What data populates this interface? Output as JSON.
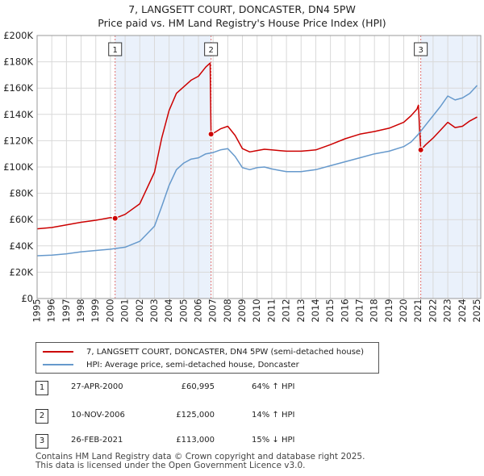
{
  "header": {
    "title": "7, LANGSETT COURT, DONCASTER, DN4 5PW",
    "subtitle": "Price paid vs. HM Land Registry's House Price Index (HPI)"
  },
  "chart_data": {
    "type": "line",
    "title": "7, LANGSETT COURT, DONCASTER, DN4 5PW",
    "subtitle": "Price paid vs. HM Land Registry's House Price Index (HPI)",
    "xlabel": "",
    "ylabel": "",
    "xlim": [
      1995,
      2025.25
    ],
    "ylim": [
      0,
      200000
    ],
    "grid": true,
    "y_ticks": [
      0,
      20000,
      40000,
      60000,
      80000,
      100000,
      120000,
      140000,
      160000,
      180000,
      200000
    ],
    "y_tick_labels": [
      "£0",
      "£20K",
      "£40K",
      "£60K",
      "£80K",
      "£100K",
      "£120K",
      "£140K",
      "£160K",
      "£180K",
      "£200K"
    ],
    "x_ticks": [
      1995,
      1996,
      1997,
      1998,
      1999,
      2000,
      2001,
      2002,
      2003,
      2004,
      2005,
      2006,
      2007,
      2008,
      2009,
      2010,
      2011,
      2012,
      2013,
      2014,
      2015,
      2016,
      2017,
      2018,
      2019,
      2020,
      2021,
      2022,
      2023,
      2024,
      2025
    ],
    "x_tick_labels": [
      "1995",
      "1996",
      "1997",
      "1998",
      "1999",
      "2000",
      "2001",
      "2002",
      "2003",
      "2004",
      "2005",
      "2006",
      "2007",
      "2008",
      "2009",
      "2010",
      "2011",
      "2012",
      "2013",
      "2014",
      "2015",
      "2016",
      "2017",
      "2018",
      "2019",
      "2020",
      "2021",
      "2022",
      "2023",
      "2024",
      "2025"
    ],
    "shaded_ranges": [
      [
        2000.32,
        2006.86
      ],
      [
        2021.16,
        2025.25
      ]
    ],
    "series": [
      {
        "name": "7, LANGSETT COURT, DONCASTER, DN4 5PW (semi-detached house)",
        "color": "#cc0000",
        "x": [
          1995.0,
          1996.0,
          1997.0,
          1998.0,
          1999.0,
          2000.0,
          2000.32,
          2001.0,
          2002.0,
          2003.0,
          2003.5,
          2004.0,
          2004.5,
          2005.0,
          2005.5,
          2006.0,
          2006.5,
          2006.8,
          2006.86,
          2007.0,
          2007.5,
          2008.0,
          2008.5,
          2009.0,
          2009.5,
          2010.0,
          2010.5,
          2011.0,
          2011.5,
          2012.0,
          2013.0,
          2014.0,
          2015.0,
          2016.0,
          2017.0,
          2018.0,
          2019.0,
          2020.0,
          2020.5,
          2020.9,
          2021.0,
          2021.16,
          2021.5,
          2022.0,
          2022.5,
          2023.0,
          2023.5,
          2024.0,
          2024.5,
          2025.0
        ],
        "values": [
          53000,
          54000,
          56000,
          58000,
          59500,
          61500,
          60995,
          64000,
          72000,
          96000,
          122000,
          143000,
          156000,
          161000,
          166000,
          169000,
          176000,
          179000,
          125000,
          125500,
          129000,
          131000,
          124000,
          114000,
          111500,
          112500,
          113500,
          113000,
          112500,
          112000,
          112000,
          113000,
          117000,
          121500,
          125000,
          127000,
          129500,
          134000,
          139000,
          144000,
          147000,
          113000,
          117000,
          122000,
          128000,
          134000,
          130000,
          131000,
          135000,
          138000
        ]
      },
      {
        "name": "HPI: Average price, semi-detached house, Doncaster",
        "color": "#6699cc",
        "x": [
          1995.0,
          1996.0,
          1997.0,
          1998.0,
          1999.0,
          2000.0,
          2001.0,
          2002.0,
          2003.0,
          2003.5,
          2004.0,
          2004.5,
          2005.0,
          2005.5,
          2006.0,
          2006.5,
          2007.0,
          2007.5,
          2008.0,
          2008.5,
          2009.0,
          2009.5,
          2010.0,
          2010.5,
          2011.0,
          2011.5,
          2012.0,
          2013.0,
          2014.0,
          2015.0,
          2016.0,
          2017.0,
          2018.0,
          2019.0,
          2020.0,
          2020.5,
          2021.0,
          2021.5,
          2022.0,
          2022.5,
          2023.0,
          2023.5,
          2024.0,
          2024.5,
          2025.0
        ],
        "values": [
          32500,
          33000,
          34000,
          35500,
          36500,
          37500,
          39000,
          43500,
          55000,
          70000,
          86000,
          98000,
          103000,
          106000,
          107000,
          110000,
          111000,
          113000,
          114000,
          108000,
          99500,
          98000,
          99500,
          100000,
          98500,
          97500,
          96500,
          96500,
          98000,
          101000,
          104000,
          107000,
          110000,
          112000,
          115500,
          119000,
          125000,
          132000,
          139000,
          146000,
          154000,
          151000,
          152500,
          156000,
          162000
        ]
      }
    ],
    "sales": [
      {
        "label": "1",
        "x": 2000.32,
        "value": 60995
      },
      {
        "label": "2",
        "x": 2006.86,
        "value": 125000
      },
      {
        "label": "3",
        "x": 2021.16,
        "value": 113000
      }
    ]
  },
  "legend": {
    "items": [
      {
        "label": "7, LANGSETT COURT, DONCASTER, DN4 5PW (semi-detached house)",
        "color": "#cc0000"
      },
      {
        "label": "HPI: Average price, semi-detached house, Doncaster",
        "color": "#6699cc"
      }
    ]
  },
  "transactions": [
    {
      "num": "1",
      "date": "27-APR-2000",
      "price": "£60,995",
      "hpi": "64% ↑ HPI"
    },
    {
      "num": "2",
      "date": "10-NOV-2006",
      "price": "£125,000",
      "hpi": "14% ↑ HPI"
    },
    {
      "num": "3",
      "date": "26-FEB-2021",
      "price": "£113,000",
      "hpi": "15% ↓ HPI"
    }
  ],
  "footer": {
    "line1": "Contains HM Land Registry data © Crown copyright and database right 2025.",
    "line2": "This data is licensed under the Open Government Licence v3.0."
  }
}
